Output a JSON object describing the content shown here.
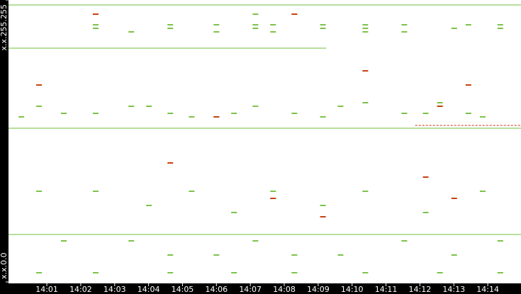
{
  "chart_data": {
    "type": "scatter",
    "xlim": [
      -0.13,
      14.98
    ],
    "ylim": [
      0,
      65535
    ],
    "xticks": [
      {
        "value": 1,
        "label": "14:01"
      },
      {
        "value": 2,
        "label": "14:02"
      },
      {
        "value": 3,
        "label": "14:03"
      },
      {
        "value": 4,
        "label": "14:04"
      },
      {
        "value": 5,
        "label": "14:05"
      },
      {
        "value": 6,
        "label": "14:06"
      },
      {
        "value": 7,
        "label": "14:07"
      },
      {
        "value": 8,
        "label": "14:08"
      },
      {
        "value": 9,
        "label": "14:09"
      },
      {
        "value": 10,
        "label": "14:10"
      },
      {
        "value": 11,
        "label": "14:11"
      },
      {
        "value": 12,
        "label": "14:12"
      },
      {
        "value": 13,
        "label": "14:13"
      },
      {
        "value": 14,
        "label": "14:14"
      }
    ],
    "yticks": [
      {
        "value": 0,
        "label": "x.x.0.0"
      },
      {
        "value": 65535,
        "label": "x.x.255.255"
      }
    ],
    "streams": [
      {
        "color": "#6cbf3c",
        "y": 64380,
        "x": [
          -0.13,
          14.98
        ]
      },
      {
        "color": "#6cbf3c",
        "y": 54340,
        "x": [
          -0.13,
          9.24
        ]
      },
      {
        "color": "#6cbf3c",
        "y": 35730,
        "x": [
          -0.13,
          14.98
        ]
      },
      {
        "color": "#c83010",
        "y": 36390,
        "x": [
          11.86,
          14.98
        ]
      },
      {
        "color": "#6cbf3c",
        "y": 11030,
        "x": [
          -0.13,
          14.98
        ]
      }
    ],
    "series": [
      {
        "color": "#7cc24a",
        "x": [
          2.44,
          2.44,
          2.44,
          3.49,
          4.64,
          4.64,
          6.0,
          6.0,
          7.15,
          7.15,
          7.15,
          7.67,
          7.67,
          8.3,
          9.14,
          9.14,
          10.39,
          10.39,
          10.39,
          11.54,
          11.54,
          13.01,
          13.43,
          14.37,
          14.37,
          0.77,
          1.5,
          4.01,
          5.27,
          6.52,
          9.66,
          12.17,
          12.59,
          13.85,
          0.25,
          2.44,
          3.49,
          4.64,
          6.0,
          7.15,
          8.3,
          9.14,
          10.39,
          11.54,
          12.59,
          13.43,
          0.77,
          2.44,
          4.01,
          5.27,
          6.52,
          7.67,
          9.14,
          10.39,
          12.17,
          13.85,
          1.5,
          3.49,
          4.64,
          6.0,
          7.15,
          8.3,
          9.66,
          11.54,
          13.01,
          14.37,
          0.77,
          2.44,
          4.64,
          6.52,
          8.3,
          10.39,
          12.59,
          14.37
        ],
        "y": [
          59770,
          58950,
          62240,
          58130,
          59770,
          58950,
          59770,
          58130,
          59770,
          58950,
          62240,
          59770,
          58130,
          62240,
          59770,
          58950,
          59770,
          58950,
          58130,
          59770,
          58130,
          58950,
          59770,
          58950,
          59770,
          40840,
          39190,
          40840,
          38370,
          39190,
          40840,
          39190,
          41660,
          38370,
          38370,
          39190,
          40840,
          39190,
          38370,
          40840,
          39190,
          38370,
          41660,
          39190,
          40840,
          39190,
          21080,
          21080,
          17780,
          21080,
          16140,
          21080,
          17780,
          21080,
          16140,
          21080,
          9550,
          9550,
          6260,
          6260,
          9550,
          6260,
          6260,
          9550,
          6260,
          9550,
          2140,
          2140,
          2140,
          2140,
          2140,
          2140,
          2140,
          2140
        ]
      },
      {
        "color": "#c84010",
        "x": [
          2.44,
          8.3,
          0.77,
          6.0,
          13.43,
          12.59,
          4.64,
          7.67,
          9.14,
          12.17,
          13.01,
          10.39
        ],
        "y": [
          62240,
          62240,
          45780,
          38370,
          45780,
          40840,
          27660,
          19430,
          15150,
          24370,
          19430,
          49070
        ]
      }
    ]
  }
}
